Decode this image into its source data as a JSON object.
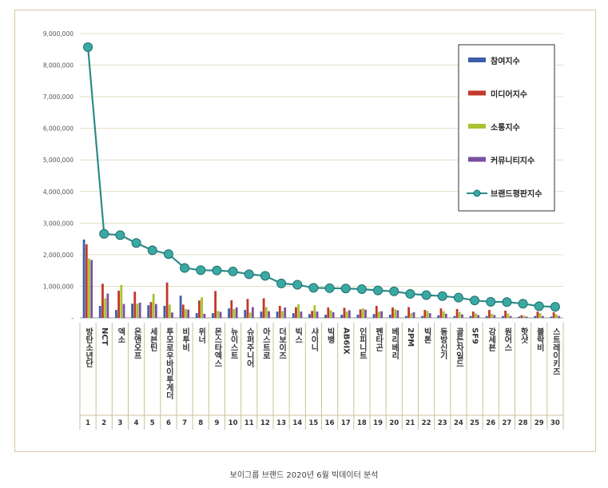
{
  "caption": "보이그룹 브랜드 2020년 6월 빅데이터 분석",
  "chart_data": {
    "type": "bar",
    "y_ticks": [
      "-",
      "1,000,000",
      "2,000,000",
      "3,000,000",
      "4,000,000",
      "5,000,000",
      "6,000,000",
      "7,000,000",
      "8,000,000",
      "9,000,000"
    ],
    "ylim": [
      0,
      9000000
    ],
    "grid": true,
    "legend_position": "top-right",
    "ranks": [
      1,
      2,
      3,
      4,
      5,
      6,
      7,
      8,
      9,
      10,
      11,
      12,
      13,
      14,
      15,
      16,
      17,
      18,
      19,
      20,
      21,
      22,
      23,
      24,
      25,
      26,
      27,
      28,
      29,
      30
    ],
    "categories": [
      "방탄소년단",
      "NCT",
      "엑소",
      "온앤오프",
      "세븐틴",
      "투모로우바이투게더",
      "비투비",
      "위너",
      "몬스타엑스",
      "뉴이스트",
      "슈퍼주니어",
      "아스트로",
      "더보이즈",
      "빅스",
      "샤이니",
      "빅뱅",
      "AB6IX",
      "인피니트",
      "펜타곤",
      "베리베리",
      "2PM",
      "빅톤",
      "동방신기",
      "골든차일드",
      "SF9",
      "강세븐",
      "원어스",
      "핫샷",
      "블락비",
      "스트레이키즈"
    ],
    "series": [
      {
        "name": "참여지수",
        "type": "bar",
        "color": "#3d5ea8",
        "values": [
          2480000,
          380000,
          250000,
          450000,
          400000,
          380000,
          700000,
          150000,
          150000,
          300000,
          250000,
          200000,
          200000,
          150000,
          120000,
          100000,
          100000,
          100000,
          120000,
          100000,
          60000,
          60000,
          80000,
          60000,
          60000,
          60000,
          60000,
          40000,
          60000,
          40000
        ]
      },
      {
        "name": "미디어지수",
        "type": "bar",
        "color": "#c0392b",
        "values": [
          2330000,
          1080000,
          860000,
          830000,
          500000,
          1120000,
          420000,
          550000,
          850000,
          560000,
          600000,
          620000,
          380000,
          340000,
          220000,
          330000,
          320000,
          270000,
          380000,
          330000,
          340000,
          250000,
          300000,
          280000,
          200000,
          250000,
          230000,
          80000,
          200000,
          180000
        ]
      },
      {
        "name": "소통지수",
        "type": "bar",
        "color": "#a8c230",
        "values": [
          1880000,
          620000,
          1040000,
          450000,
          760000,
          420000,
          280000,
          650000,
          220000,
          280000,
          170000,
          340000,
          220000,
          430000,
          400000,
          240000,
          200000,
          300000,
          200000,
          270000,
          150000,
          220000,
          210000,
          180000,
          140000,
          130000,
          140000,
          70000,
          150000,
          110000
        ]
      },
      {
        "name": "커뮤니티지수",
        "type": "bar",
        "color": "#7b4fa0",
        "values": [
          1830000,
          770000,
          440000,
          480000,
          440000,
          170000,
          260000,
          130000,
          190000,
          330000,
          340000,
          210000,
          330000,
          200000,
          200000,
          180000,
          240000,
          260000,
          210000,
          240000,
          180000,
          150000,
          130000,
          110000,
          90000,
          90000,
          60000,
          40000,
          60000,
          60000
        ]
      },
      {
        "name": "브랜드평판지수",
        "type": "line",
        "color": "#2e8b88",
        "values": [
          8570000,
          2660000,
          2620000,
          2370000,
          2140000,
          2020000,
          1580000,
          1510000,
          1500000,
          1470000,
          1380000,
          1330000,
          1090000,
          1050000,
          950000,
          940000,
          930000,
          910000,
          870000,
          840000,
          760000,
          720000,
          690000,
          640000,
          550000,
          510000,
          500000,
          450000,
          370000,
          350000
        ]
      }
    ]
  }
}
